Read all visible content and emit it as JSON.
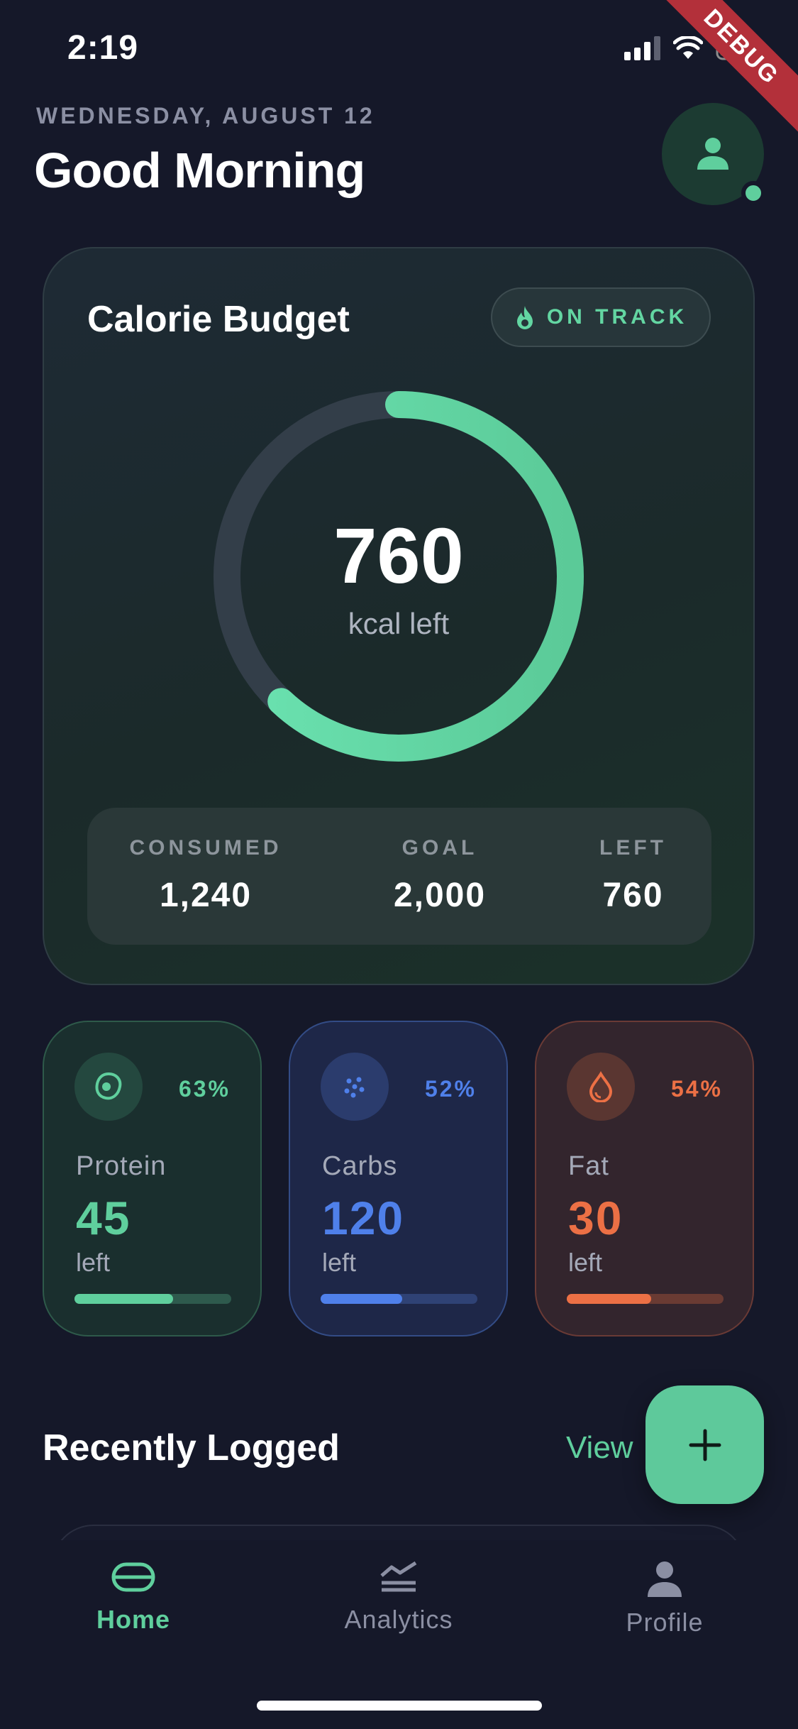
{
  "status_bar": {
    "time": "2:19"
  },
  "debug_banner": "DEBUG",
  "header": {
    "date": "WEDNESDAY, AUGUST 12",
    "greeting": "Good Morning"
  },
  "calorie_card": {
    "title": "Calorie Budget",
    "status": "ON TRACK",
    "remaining_value": "760",
    "remaining_unit": "kcal left",
    "progress_fraction": 0.62,
    "stats": [
      {
        "label": "CONSUMED",
        "value": "1,240"
      },
      {
        "label": "GOAL",
        "value": "2,000"
      },
      {
        "label": "LEFT",
        "value": "760"
      }
    ]
  },
  "macros": [
    {
      "name": "Protein",
      "value": "45",
      "unit": "left",
      "percent": "63%",
      "fraction": 0.63,
      "color": "#5fcf9d",
      "icon": "egg-icon"
    },
    {
      "name": "Carbs",
      "value": "120",
      "unit": "left",
      "percent": "52%",
      "fraction": 0.52,
      "color": "#4f80ea",
      "icon": "grain-icon"
    },
    {
      "name": "Fat",
      "value": "30",
      "unit": "left",
      "percent": "54%",
      "fraction": 0.54,
      "color": "#ec7045",
      "icon": "drop-icon"
    }
  ],
  "recent": {
    "title": "Recently Logged",
    "view_label": "View"
  },
  "nav": {
    "items": [
      {
        "label": "Home",
        "active": true,
        "icon": "home-icon"
      },
      {
        "label": "Analytics",
        "active": false,
        "icon": "analytics-icon"
      },
      {
        "label": "Profile",
        "active": false,
        "icon": "profile-icon"
      }
    ]
  },
  "colors": {
    "accent": "#5fcf9d",
    "background": "#151829",
    "inactive": "#8b8fa3"
  }
}
